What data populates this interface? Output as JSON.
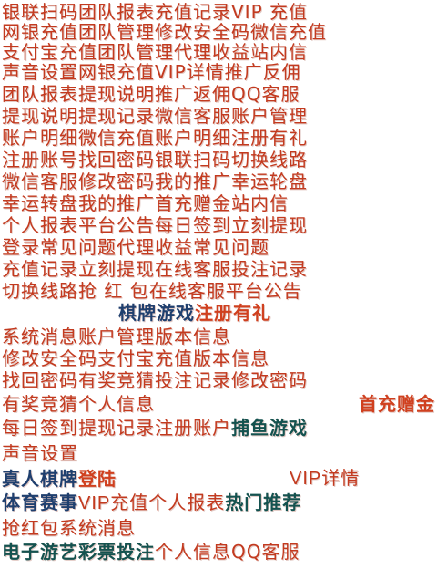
{
  "lines": [
    [
      "银联扫码团队报表充值记录VIP 充值"
    ],
    [
      "网银充值团队管理修改安全码微信充值"
    ],
    [
      "支付宝充值团队管理代理收益站内信"
    ],
    [
      "声音设置网银充值VIP详情推广反佣"
    ],
    [
      "团队报表提现说明推广返佣QQ客服"
    ],
    [
      "提现说明提现记录微信客服账户管理"
    ],
    [
      "账户明细微信充值账户明细注册有礼"
    ],
    [
      "注册账号找回密码银联扫码切换线路"
    ],
    [
      "微信客服修改密码我的推广幸运轮盘"
    ],
    [
      "幸运转盘我的推广首充赠金站内信"
    ],
    [
      "个人报表平台公告每日签到立刻提现"
    ],
    [
      "登录常见问题代理收益常见问题"
    ],
    [
      "充值记录立刻提现在线客服投注记录"
    ],
    [
      "切换线路抢 红 包在线客服平台公告"
    ],
    [
      "棋牌游戏",
      "注册有礼"
    ],
    [
      "系统消息账户管理版本信息"
    ],
    [
      "修改安全码支付宝充值版本信息"
    ],
    [
      "找回密码有奖竞猜投注记录修改密码"
    ],
    [
      "有奖竞猜个人信息",
      "首充赠金"
    ],
    [
      "每日签到提现记录注册账户",
      "捕鱼游戏"
    ],
    [
      "声音设置"
    ],
    [
      "真人棋牌",
      "登陆",
      "VIP详情"
    ],
    [
      "体育赛事",
      "VIP充值个人报表",
      "热门推荐"
    ],
    [
      "抢红包系统消息"
    ],
    [
      "电子游艺彩票投注",
      "个人信息QQ客服"
    ]
  ]
}
